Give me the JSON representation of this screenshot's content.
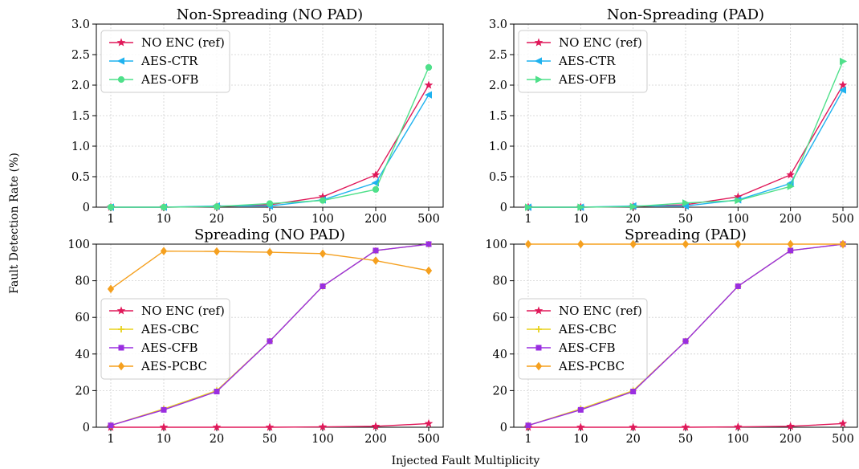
{
  "figure": {
    "ylabel": "Fault Detection Rate (%)",
    "xlabel": "Injected Fault Multiplicity"
  },
  "chart_data": [
    {
      "type": "line",
      "title": "Non-Spreading (NO PAD)",
      "categories": [
        "1",
        "10",
        "20",
        "50",
        "100",
        "200",
        "500"
      ],
      "ylim": [
        0,
        3.0
      ],
      "yticks": [
        "0",
        "0.5",
        "1.0",
        "1.5",
        "2.0",
        "2.5",
        "3.0"
      ],
      "grid": true,
      "legend": "top-left",
      "series": [
        {
          "name": "NO ENC (ref)",
          "color": "#e0195a",
          "marker": "star",
          "values": [
            0,
            0,
            0.01,
            0.04,
            0.17,
            0.53,
            2.0
          ]
        },
        {
          "name": "AES-CTR",
          "color": "#1fb2ef",
          "marker": "triangle-left",
          "values": [
            0,
            0,
            0.02,
            0.02,
            0.12,
            0.4,
            1.84
          ]
        },
        {
          "name": "AES-OFB",
          "color": "#4fe08a",
          "marker": "circle",
          "values": [
            0,
            0,
            0.01,
            0.06,
            0.11,
            0.29,
            2.29
          ]
        }
      ]
    },
    {
      "type": "line",
      "title": "Non-Spreading (PAD)",
      "categories": [
        "1",
        "10",
        "20",
        "50",
        "100",
        "200",
        "500"
      ],
      "ylim": [
        0,
        3.0
      ],
      "yticks": [
        "0",
        "0.5",
        "1.0",
        "1.5",
        "2.0",
        "2.5",
        "3.0"
      ],
      "grid": true,
      "legend": "top-left",
      "series": [
        {
          "name": "NO ENC (ref)",
          "color": "#e0195a",
          "marker": "star",
          "values": [
            0,
            0,
            0.01,
            0.04,
            0.17,
            0.53,
            2.0
          ]
        },
        {
          "name": "AES-CTR",
          "color": "#1fb2ef",
          "marker": "triangle-left",
          "values": [
            0,
            0,
            0.02,
            0.02,
            0.12,
            0.39,
            1.92
          ]
        },
        {
          "name": "AES-OFB",
          "color": "#4fe08a",
          "marker": "triangle-right",
          "values": [
            0,
            0,
            0.01,
            0.07,
            0.11,
            0.34,
            2.39
          ]
        }
      ]
    },
    {
      "type": "line",
      "title": "Spreading (NO PAD)",
      "categories": [
        "1",
        "10",
        "20",
        "50",
        "100",
        "200",
        "500"
      ],
      "ylim": [
        0,
        100
      ],
      "yticks": [
        "0",
        "20",
        "40",
        "60",
        "80",
        "100"
      ],
      "grid": true,
      "legend": "center-left",
      "series": [
        {
          "name": "NO ENC (ref)",
          "color": "#e0195a",
          "marker": "star",
          "values": [
            0,
            0,
            0,
            0,
            0.2,
            0.5,
            2.0
          ]
        },
        {
          "name": "AES-CBC",
          "color": "#e8d21c",
          "marker": "plus",
          "values": [
            1,
            10,
            20,
            47,
            77,
            96.5,
            100
          ]
        },
        {
          "name": "AES-CFB",
          "color": "#9a2ee0",
          "marker": "square",
          "values": [
            1,
            9.5,
            19.5,
            47,
            77,
            96.5,
            100
          ]
        },
        {
          "name": "AES-PCBC",
          "color": "#f5a01f",
          "marker": "diamond",
          "values": [
            75.5,
            96.2,
            96,
            95.6,
            94.8,
            91,
            85.5
          ]
        }
      ]
    },
    {
      "type": "line",
      "title": "Spreading (PAD)",
      "categories": [
        "1",
        "10",
        "20",
        "50",
        "100",
        "200",
        "500"
      ],
      "ylim": [
        0,
        100
      ],
      "yticks": [
        "0",
        "20",
        "40",
        "60",
        "80",
        "100"
      ],
      "grid": true,
      "legend": "center-left",
      "series": [
        {
          "name": "NO ENC (ref)",
          "color": "#e0195a",
          "marker": "star",
          "values": [
            0,
            0,
            0,
            0,
            0.2,
            0.5,
            2.0
          ]
        },
        {
          "name": "AES-CBC",
          "color": "#e8d21c",
          "marker": "plus",
          "values": [
            1,
            10,
            20,
            47,
            77,
            96.5,
            100
          ]
        },
        {
          "name": "AES-CFB",
          "color": "#9a2ee0",
          "marker": "square",
          "values": [
            1,
            9.5,
            19.5,
            47,
            77,
            96.5,
            100
          ]
        },
        {
          "name": "AES-PCBC",
          "color": "#f5a01f",
          "marker": "diamond",
          "values": [
            100,
            100,
            100,
            100,
            100,
            100,
            100
          ]
        }
      ]
    }
  ]
}
